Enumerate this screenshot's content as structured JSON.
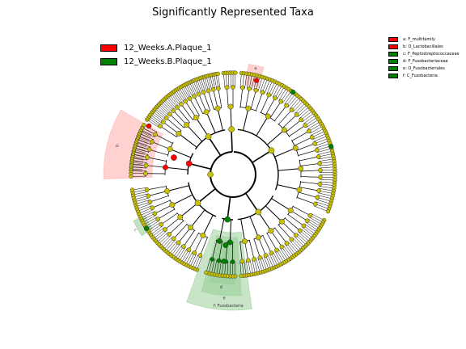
{
  "title": "Significantly Represented Taxa",
  "legend_classes": [
    {
      "label": "12_Weeks.A.Plaque_1",
      "color": "#ff0000"
    },
    {
      "label": "12_Weeks.B.Plaque_1",
      "color": "#008000"
    }
  ],
  "taxa_key": [
    {
      "label": "a: F_multifamily",
      "color": "#ff0000"
    },
    {
      "label": "b: O_Lactobacillales",
      "color": "#ff0000"
    },
    {
      "label": "c: F_Peptostreptococcaceae",
      "color": "#008000"
    },
    {
      "label": "d: F_Fusobacteriaceae",
      "color": "#008000"
    },
    {
      "label": "e: O_Fusobacteriales",
      "color": "#008000"
    },
    {
      "label": "f: C_Fusobacteria",
      "color": "#008000"
    }
  ],
  "sector_labels": {
    "a": "a",
    "b": "b",
    "c": "c",
    "d": "d",
    "e": "e",
    "f": "f: Fusobacteria"
  },
  "colors": {
    "node_default": "#c8c000",
    "node_red": "#ff0000",
    "node_green": "#008000",
    "shade_red": "#ffb3b3",
    "shade_green": "#9ad09a"
  }
}
